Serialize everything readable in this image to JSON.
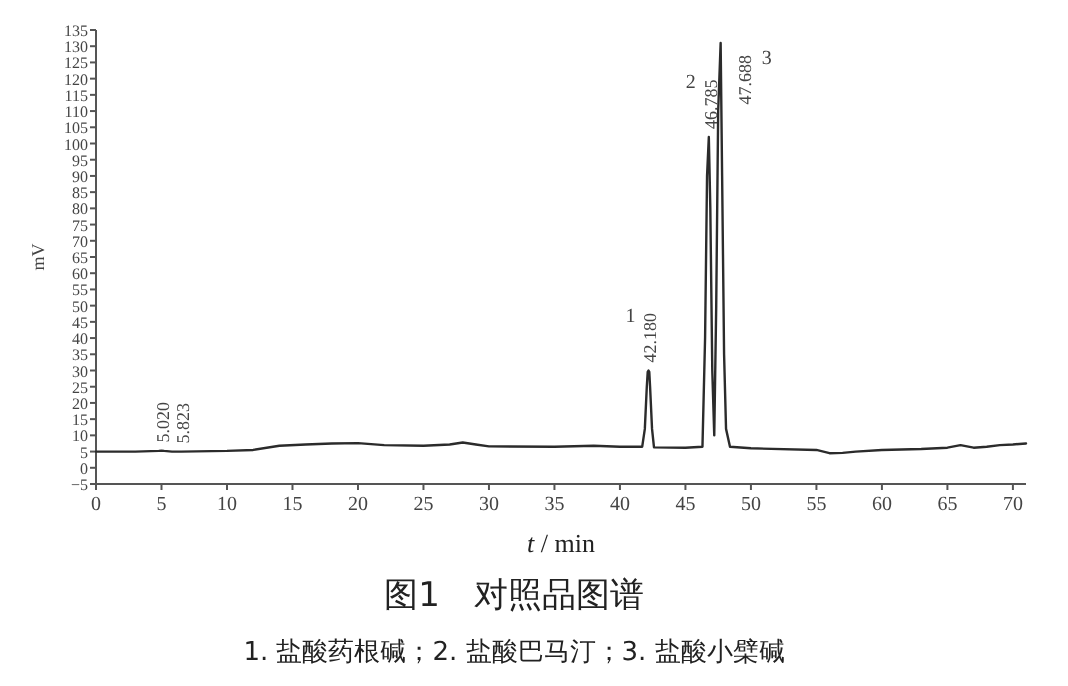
{
  "chart_data": {
    "type": "line",
    "title": "图1　对照品图谱",
    "xlabel": "t / min",
    "ylabel": "mV",
    "xlim": [
      0,
      71
    ],
    "ylim": [
      -5,
      135
    ],
    "xticks": [
      0,
      5,
      10,
      15,
      20,
      25,
      30,
      35,
      40,
      45,
      50,
      55,
      60,
      65,
      70
    ],
    "yticks": [
      -5,
      0,
      5,
      10,
      15,
      20,
      25,
      30,
      35,
      40,
      45,
      50,
      55,
      60,
      65,
      70,
      75,
      80,
      85,
      90,
      95,
      100,
      105,
      110,
      115,
      120,
      125,
      130,
      135
    ],
    "x": [
      0,
      3,
      4.8,
      5.0,
      5.2,
      5.8,
      6.5,
      10,
      12,
      14,
      16,
      18,
      20,
      22,
      25,
      27,
      28,
      29,
      30,
      35,
      38,
      40,
      41.7,
      41.9,
      42.05,
      42.12,
      42.18,
      42.24,
      42.3,
      42.45,
      42.6,
      45,
      46.3,
      46.5,
      46.65,
      46.785,
      46.9,
      47.05,
      47.2,
      47.35,
      47.5,
      47.688,
      47.8,
      47.95,
      48.1,
      48.4,
      50,
      55,
      56,
      57,
      58,
      60,
      63,
      65,
      66,
      67,
      68,
      69,
      70,
      71
    ],
    "series": [
      {
        "color": "#2b2b2b",
        "values": [
          5,
          5,
          5.2,
          5.3,
          5.2,
          5,
          5,
          5.2,
          5.5,
          6.8,
          7.2,
          7.5,
          7.6,
          7,
          6.8,
          7.2,
          7.8,
          7.2,
          6.6,
          6.5,
          6.8,
          6.5,
          6.5,
          12,
          25,
          29.6,
          30,
          29.6,
          25,
          12,
          6.3,
          6.2,
          6.5,
          40,
          90,
          102,
          80,
          30,
          10,
          50,
          110,
          131,
          90,
          35,
          12,
          6.5,
          6,
          5.5,
          4.5,
          4.6,
          5,
          5.5,
          5.8,
          6.2,
          7,
          6.2,
          6.5,
          7,
          7.2,
          7.5
        ]
      }
    ],
    "annotations": [
      {
        "text": "5.020",
        "x": 5.0,
        "y": 5.3
      },
      {
        "text": "5.823",
        "x": 5.8,
        "y": 5
      },
      {
        "text": "42.180",
        "x": 42.18,
        "y": 30
      },
      {
        "text": "1",
        "x": 42.18,
        "y": 30
      },
      {
        "text": "46.785",
        "x": 46.785,
        "y": 102
      },
      {
        "text": "2",
        "x": 46.785,
        "y": 102
      },
      {
        "text": "47.688",
        "x": 47.688,
        "y": 131
      },
      {
        "text": "3",
        "x": 47.688,
        "y": 131
      },
      "1. 盐酸药根碱；2. 盐酸巴马汀；3. 盐酸小檗碱"
    ]
  }
}
